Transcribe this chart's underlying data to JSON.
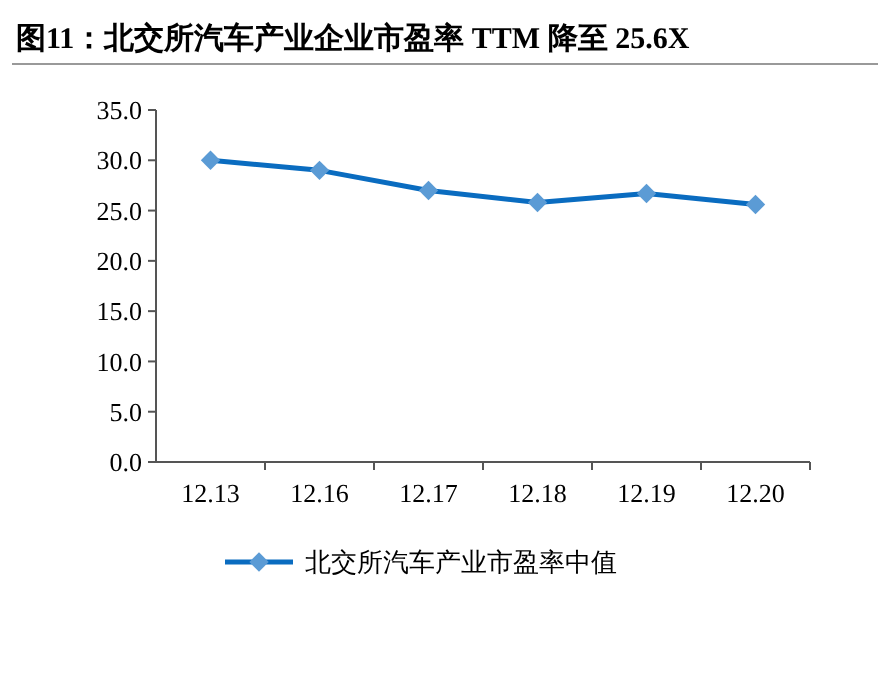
{
  "chart_data": {
    "type": "line",
    "title": "图11：北交所汽车产业企业市盈率 TTM 降至 25.6X",
    "categories": [
      "12.13",
      "12.16",
      "12.17",
      "12.18",
      "12.19",
      "12.20"
    ],
    "series": [
      {
        "name": "北交所汽车产业市盈率中值",
        "color": "#0a6cc0",
        "values": [
          30.0,
          29.0,
          27.0,
          25.8,
          26.7,
          25.6
        ]
      }
    ],
    "ylim": [
      0,
      35
    ],
    "yticks": [
      {
        "value": 0,
        "label": "0.0"
      },
      {
        "value": 5,
        "label": "5.0"
      },
      {
        "value": 10,
        "label": "10.0"
      },
      {
        "value": 15,
        "label": "15.0"
      },
      {
        "value": 20,
        "label": "20.0"
      },
      {
        "value": 25,
        "label": "25.0"
      },
      {
        "value": 30,
        "label": "30.0"
      },
      {
        "value": 35,
        "label": "35.0"
      }
    ],
    "grid": false,
    "legend": "bottom",
    "marker": "diamond",
    "line_style": "solid"
  }
}
